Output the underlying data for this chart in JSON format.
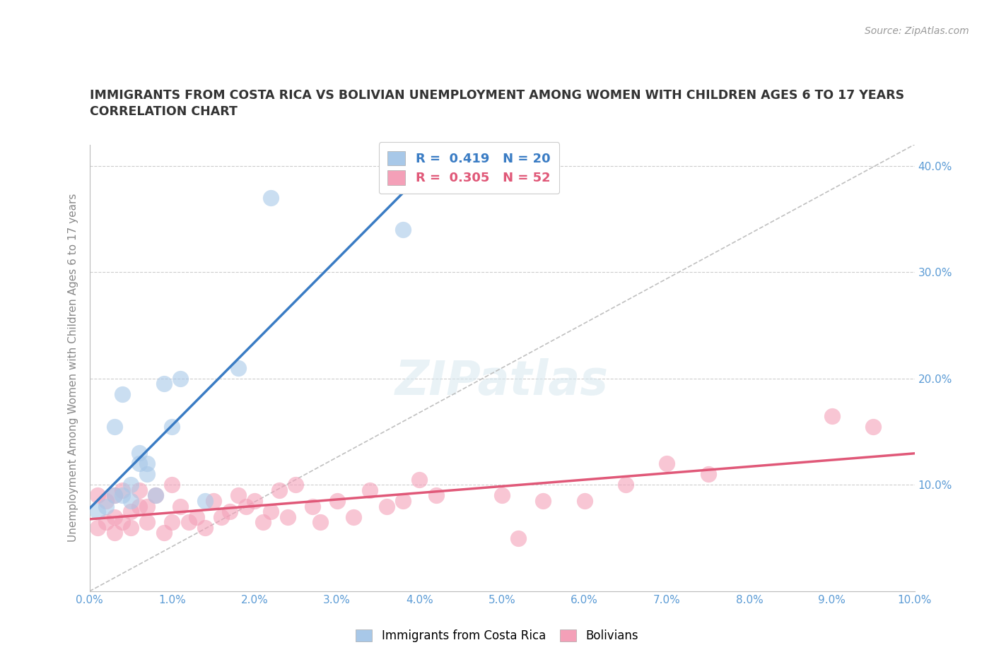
{
  "title_line1": "IMMIGRANTS FROM COSTA RICA VS BOLIVIAN UNEMPLOYMENT AMONG WOMEN WITH CHILDREN AGES 6 TO 17 YEARS",
  "title_line2": "CORRELATION CHART",
  "source": "Source: ZipAtlas.com",
  "ylabel_label": "Unemployment Among Women with Children Ages 6 to 17 years",
  "xlim": [
    0,
    0.1
  ],
  "ylim": [
    0,
    0.42
  ],
  "color_blue": "#A8C8E8",
  "color_pink": "#F4A0B8",
  "line_blue": "#3A7CC4",
  "line_pink": "#E05878",
  "diagonal_color": "#BBBBBB",
  "costa_rica_x": [
    0.001,
    0.002,
    0.003,
    0.003,
    0.004,
    0.004,
    0.005,
    0.005,
    0.006,
    0.006,
    0.007,
    0.007,
    0.008,
    0.009,
    0.01,
    0.011,
    0.014,
    0.018,
    0.022,
    0.038
  ],
  "costa_rica_y": [
    0.075,
    0.08,
    0.09,
    0.155,
    0.09,
    0.185,
    0.085,
    0.1,
    0.12,
    0.13,
    0.11,
    0.12,
    0.09,
    0.195,
    0.155,
    0.2,
    0.085,
    0.21,
    0.37,
    0.34
  ],
  "bolivian_x": [
    0.001,
    0.001,
    0.002,
    0.002,
    0.003,
    0.003,
    0.003,
    0.004,
    0.004,
    0.005,
    0.005,
    0.006,
    0.006,
    0.007,
    0.007,
    0.008,
    0.009,
    0.01,
    0.01,
    0.011,
    0.012,
    0.013,
    0.014,
    0.015,
    0.016,
    0.017,
    0.018,
    0.019,
    0.02,
    0.021,
    0.022,
    0.023,
    0.024,
    0.025,
    0.027,
    0.028,
    0.03,
    0.032,
    0.034,
    0.036,
    0.038,
    0.04,
    0.042,
    0.05,
    0.052,
    0.055,
    0.06,
    0.065,
    0.07,
    0.075,
    0.09,
    0.095
  ],
  "bolivian_y": [
    0.06,
    0.09,
    0.065,
    0.085,
    0.07,
    0.09,
    0.055,
    0.065,
    0.095,
    0.06,
    0.075,
    0.08,
    0.095,
    0.065,
    0.08,
    0.09,
    0.055,
    0.065,
    0.1,
    0.08,
    0.065,
    0.07,
    0.06,
    0.085,
    0.07,
    0.075,
    0.09,
    0.08,
    0.085,
    0.065,
    0.075,
    0.095,
    0.07,
    0.1,
    0.08,
    0.065,
    0.085,
    0.07,
    0.095,
    0.08,
    0.085,
    0.105,
    0.09,
    0.09,
    0.05,
    0.085,
    0.085,
    0.1,
    0.12,
    0.11,
    0.165,
    0.155
  ]
}
